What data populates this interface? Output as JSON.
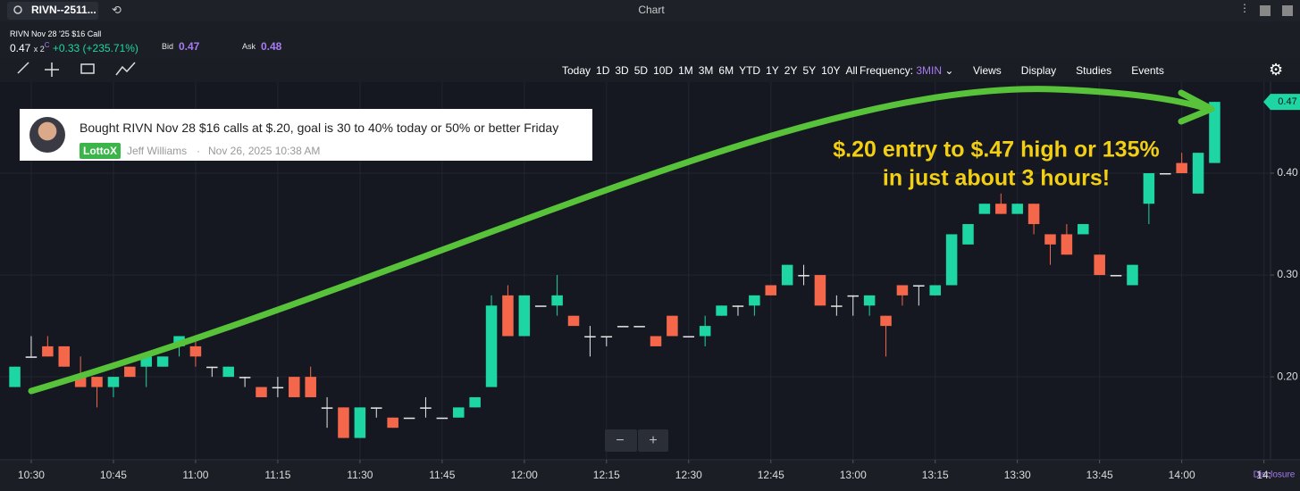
{
  "header": {
    "symbol": "RIVN--2511...",
    "window_title": "Chart"
  },
  "quote": {
    "contract": "RIVN Nov 28 '25 $16 Call",
    "last": "0.47",
    "size": "x 2",
    "size_flag": "C",
    "change": "+0.33 (+235.71%)",
    "bid_label": "Bid",
    "bid": "0.47",
    "ask_label": "Ask",
    "ask": "0.48"
  },
  "toolbar": {
    "ranges": [
      "Today",
      "1D",
      "3D",
      "5D",
      "10D",
      "1M",
      "3M",
      "6M",
      "YTD",
      "1Y",
      "2Y",
      "5Y",
      "10Y",
      "All"
    ],
    "frequency_label": "Frequency:",
    "frequency": "3MIN",
    "menus": [
      "Views",
      "Display",
      "Studies",
      "Events"
    ]
  },
  "post": {
    "text": "Bought RIVN Nov 28 $16 calls at $.20, goal is 30 to 40% today or 50% or better Friday",
    "tag": "LottoX",
    "author": "Jeff Williams",
    "date": "Nov 26, 2025 10:38 AM"
  },
  "annotation": [
    "$.20 entry to $.47 high or 135%",
    "in just about 3 hours!"
  ],
  "zoom": [
    "−",
    "+"
  ],
  "disclosure": "Disclosure",
  "chart_data": {
    "type": "candlestick",
    "up_color": "#1ed6a4",
    "down_color": "#f4674b",
    "flat_color": "#e8e8e8",
    "open": [
      0.19,
      0.22,
      0.23,
      0.23,
      0.2,
      0.2,
      0.19,
      0.21,
      0.21,
      0.21,
      0.23,
      0.23,
      0.21,
      0.2,
      0.2,
      0.19,
      0.19,
      0.2,
      0.2,
      0.17,
      0.17,
      0.14,
      0.17,
      0.16,
      0.16,
      0.17,
      0.16,
      0.16,
      0.17,
      0.19,
      0.28,
      0.24,
      0.27,
      0.27,
      0.26,
      0.24,
      0.24,
      0.25,
      0.25,
      0.24,
      0.26,
      0.24,
      0.24,
      0.26,
      0.27,
      0.27,
      0.29,
      0.29,
      0.3,
      0.3,
      0.27,
      0.28,
      0.27,
      0.26,
      0.29,
      0.29,
      0.28,
      0.29,
      0.33,
      0.36,
      0.37,
      0.36,
      0.37,
      0.34,
      0.34,
      0.34,
      0.32,
      0.3,
      0.29,
      0.37,
      0.4,
      0.41,
      0.38,
      0.41
    ],
    "high": [
      0.21,
      0.24,
      0.24,
      0.23,
      0.22,
      0.2,
      0.2,
      0.21,
      0.22,
      0.22,
      0.24,
      0.24,
      0.21,
      0.21,
      0.2,
      0.19,
      0.2,
      0.2,
      0.21,
      0.18,
      0.17,
      0.17,
      0.17,
      0.16,
      0.16,
      0.18,
      0.16,
      0.17,
      0.18,
      0.28,
      0.29,
      0.28,
      0.27,
      0.3,
      0.26,
      0.25,
      0.24,
      0.25,
      0.25,
      0.24,
      0.26,
      0.24,
      0.26,
      0.27,
      0.27,
      0.28,
      0.29,
      0.31,
      0.31,
      0.3,
      0.28,
      0.28,
      0.28,
      0.26,
      0.29,
      0.29,
      0.29,
      0.34,
      0.35,
      0.37,
      0.38,
      0.37,
      0.37,
      0.34,
      0.35,
      0.35,
      0.32,
      0.3,
      0.31,
      0.4,
      0.4,
      0.42,
      0.42,
      0.47
    ],
    "low": [
      0.19,
      0.22,
      0.22,
      0.21,
      0.19,
      0.17,
      0.18,
      0.2,
      0.19,
      0.21,
      0.22,
      0.21,
      0.2,
      0.2,
      0.19,
      0.18,
      0.18,
      0.18,
      0.18,
      0.15,
      0.14,
      0.14,
      0.16,
      0.15,
      0.16,
      0.16,
      0.16,
      0.16,
      0.17,
      0.19,
      0.24,
      0.24,
      0.27,
      0.26,
      0.25,
      0.22,
      0.23,
      0.25,
      0.25,
      0.23,
      0.24,
      0.24,
      0.23,
      0.26,
      0.26,
      0.26,
      0.28,
      0.29,
      0.29,
      0.27,
      0.26,
      0.26,
      0.26,
      0.22,
      0.27,
      0.27,
      0.28,
      0.29,
      0.33,
      0.36,
      0.36,
      0.36,
      0.34,
      0.31,
      0.32,
      0.34,
      0.3,
      0.3,
      0.29,
      0.35,
      0.4,
      0.4,
      0.38,
      0.41
    ],
    "close": [
      0.21,
      0.22,
      0.22,
      0.21,
      0.19,
      0.19,
      0.2,
      0.2,
      0.22,
      0.22,
      0.24,
      0.22,
      0.21,
      0.21,
      0.2,
      0.18,
      0.19,
      0.18,
      0.18,
      0.17,
      0.14,
      0.17,
      0.17,
      0.15,
      0.16,
      0.17,
      0.16,
      0.17,
      0.18,
      0.27,
      0.24,
      0.28,
      0.27,
      0.28,
      0.25,
      0.24,
      0.24,
      0.25,
      0.25,
      0.23,
      0.24,
      0.24,
      0.25,
      0.27,
      0.27,
      0.28,
      0.28,
      0.31,
      0.3,
      0.27,
      0.27,
      0.28,
      0.28,
      0.25,
      0.28,
      0.29,
      0.29,
      0.34,
      0.35,
      0.37,
      0.36,
      0.37,
      0.35,
      0.33,
      0.32,
      0.35,
      0.3,
      0.3,
      0.31,
      0.4,
      0.4,
      0.4,
      0.42,
      0.47
    ],
    "last_price": {
      "value": 0.47,
      "label": "0.47"
    },
    "xlim": [
      -0.9,
      76.4
    ],
    "xticks": [
      {
        "value": 1,
        "label": "10:30"
      },
      {
        "value": 6,
        "label": "10:45"
      },
      {
        "value": 11,
        "label": "11:00"
      },
      {
        "value": 16,
        "label": "11:15"
      },
      {
        "value": 21,
        "label": "11:30"
      },
      {
        "value": 26,
        "label": "11:45"
      },
      {
        "value": 31,
        "label": "12:00"
      },
      {
        "value": 36,
        "label": "12:15"
      },
      {
        "value": 41,
        "label": "12:30"
      },
      {
        "value": 46,
        "label": "12:45"
      },
      {
        "value": 51,
        "label": "13:00"
      },
      {
        "value": 56,
        "label": "13:15"
      },
      {
        "value": 61,
        "label": "13:30"
      },
      {
        "value": 66,
        "label": "13:45"
      },
      {
        "value": 71,
        "label": "14:00"
      },
      {
        "value": 76,
        "label": "14:"
      }
    ],
    "ylim": [
      0.1186,
      0.4894
    ],
    "yticks": [
      {
        "value": 0.2,
        "label": "0.20"
      },
      {
        "value": 0.3,
        "label": "0.30"
      },
      {
        "value": 0.4,
        "label": "0.40"
      }
    ],
    "grid": true
  }
}
